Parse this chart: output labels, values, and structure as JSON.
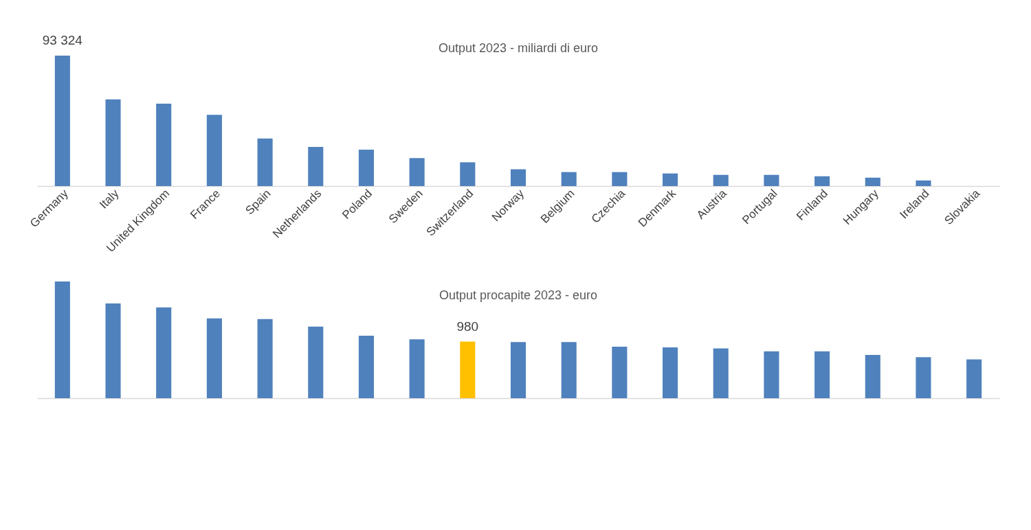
{
  "chart_data": [
    {
      "type": "bar",
      "title": "Output 2023 - miliardi di euro",
      "categories": [
        "Germany",
        "Italy",
        "United Kingdom",
        "France",
        "Spain",
        "Netherlands",
        "Poland",
        "Sweden",
        "Switzerland",
        "Norway",
        "Belgium",
        "Czechia",
        "Denmark",
        "Austria",
        "Portugal",
        "Finland",
        "Hungary",
        "Ireland",
        "Slovakia"
      ],
      "values": [
        93324,
        62000,
        59000,
        51000,
        34000,
        28000,
        26000,
        20000,
        17000,
        12000,
        10000,
        10000,
        9000,
        8000,
        8000,
        7000,
        6000,
        4000,
        null
      ],
      "value_labels": [
        "93 324",
        null,
        null,
        null,
        null,
        null,
        null,
        null,
        null,
        null,
        null,
        null,
        null,
        null,
        null,
        null,
        null,
        null,
        null
      ],
      "color": "#4f81bd",
      "grid": false
    },
    {
      "type": "bar",
      "title": "Output procapite 2023 - euro",
      "categories": [
        null,
        null,
        null,
        null,
        null,
        null,
        null,
        null,
        null,
        null,
        null,
        null,
        null,
        null,
        null,
        null,
        null,
        null,
        null
      ],
      "values": [
        2020,
        1640,
        1570,
        1380,
        1370,
        1240,
        1080,
        1020,
        980,
        970,
        970,
        890,
        880,
        860,
        810,
        810,
        750,
        710,
        670
      ],
      "value_labels": [
        null,
        null,
        null,
        null,
        null,
        null,
        null,
        null,
        "980",
        null,
        null,
        null,
        null,
        null,
        null,
        null,
        null,
        null,
        null
      ],
      "colors": [
        "#4f81bd",
        "#4f81bd",
        "#4f81bd",
        "#4f81bd",
        "#4f81bd",
        "#4f81bd",
        "#4f81bd",
        "#4f81bd",
        "#ffc000",
        "#4f81bd",
        "#4f81bd",
        "#4f81bd",
        "#4f81bd",
        "#4f81bd",
        "#4f81bd",
        "#4f81bd",
        "#4f81bd",
        "#4f81bd",
        "#4f81bd"
      ],
      "grid": false
    }
  ]
}
